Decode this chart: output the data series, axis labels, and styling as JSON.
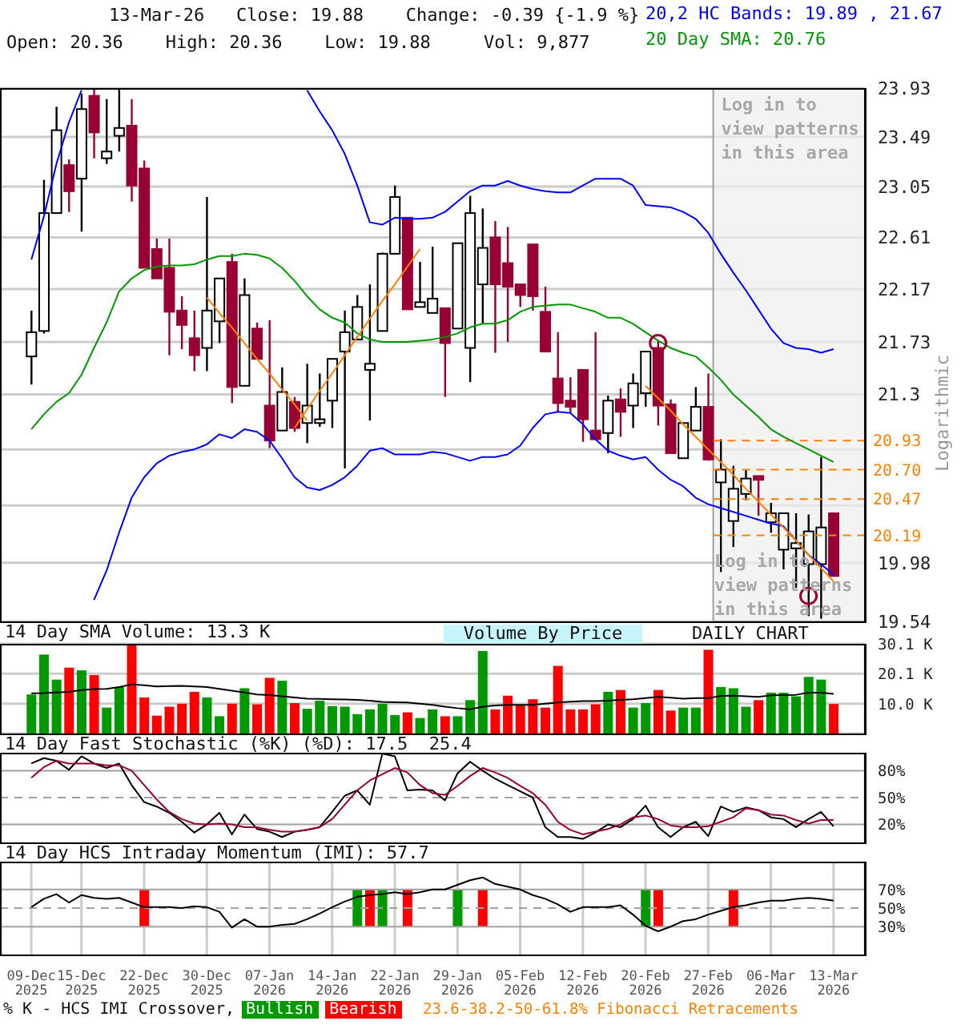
{
  "chart_data": [
    {
      "type": "candlestick",
      "categories": [
        "09-Dec 2025",
        null,
        null,
        null,
        "15-Dec 2025",
        null,
        null,
        null,
        null,
        "22-Dec 2025",
        null,
        null,
        null,
        null,
        "30-Dec 2025",
        null,
        null,
        null,
        null,
        "07-Jan 2026",
        null,
        null,
        null,
        null,
        "14-Jan 2026",
        null,
        null,
        null,
        null,
        "22-Jan 2026",
        null,
        null,
        null,
        null,
        "29-Jan 2026",
        null,
        null,
        null,
        null,
        "05-Feb 2026",
        null,
        null,
        null,
        null,
        "12-Feb 2026",
        null,
        null,
        null,
        null,
        "20-Feb 2026",
        null,
        null,
        null,
        null,
        "27-Feb 2026",
        null,
        null,
        null,
        null,
        "06-Mar 2026",
        null,
        null,
        null,
        null,
        "13-Mar 2026"
      ],
      "ohlc": [
        [
          21.61,
          21.99,
          21.38,
          21.81
        ],
        [
          21.82,
          23.11,
          21.8,
          22.82
        ],
        [
          22.82,
          23.76,
          22.82,
          23.55
        ],
        [
          23.24,
          23.29,
          22.83,
          23.01
        ],
        [
          23.12,
          23.88,
          22.66,
          23.74
        ],
        [
          23.86,
          23.92,
          23.3,
          23.53
        ],
        [
          23.3,
          23.83,
          23.25,
          23.36
        ],
        [
          23.5,
          23.93,
          23.36,
          23.57
        ],
        [
          23.59,
          23.83,
          22.92,
          23.06
        ],
        [
          23.21,
          23.28,
          22.35,
          22.35
        ],
        [
          22.51,
          22.6,
          22.26,
          22.26
        ],
        [
          22.35,
          22.6,
          21.62,
          21.98
        ],
        [
          21.99,
          22.11,
          21.67,
          21.87
        ],
        [
          21.76,
          21.99,
          21.49,
          21.62
        ],
        [
          21.68,
          22.96,
          21.49,
          21.99
        ],
        [
          21.9,
          22.26,
          21.72,
          22.26
        ],
        [
          22.4,
          22.47,
          21.23,
          21.36
        ],
        [
          21.37,
          22.26,
          21.37,
          22.12
        ],
        [
          21.84,
          21.89,
          21.59,
          21.59
        ],
        [
          21.21,
          21.91,
          20.87,
          20.93
        ],
        [
          21.01,
          21.52,
          21.01,
          21.32
        ],
        [
          21.24,
          21.28,
          21.0,
          21.03
        ],
        [
          21.07,
          21.55,
          20.91,
          21.21
        ],
        [
          21.07,
          21.47,
          21.04,
          21.1
        ],
        [
          21.25,
          21.59,
          21.03,
          21.59
        ],
        [
          21.65,
          21.99,
          20.71,
          21.81
        ],
        [
          21.75,
          22.12,
          21.75,
          22.02
        ],
        [
          21.5,
          22.21,
          21.09,
          21.55
        ],
        [
          21.82,
          22.48,
          21.82,
          22.47
        ],
        [
          22.47,
          23.06,
          22.47,
          22.96
        ],
        [
          22.78,
          22.78,
          22.0,
          22.0
        ],
        [
          22.02,
          22.4,
          22.02,
          22.06
        ],
        [
          21.97,
          22.53,
          21.97,
          22.09
        ],
        [
          22.01,
          22.01,
          21.28,
          21.72
        ],
        [
          21.84,
          22.56,
          21.84,
          22.56
        ],
        [
          21.68,
          22.97,
          21.4,
          22.82
        ],
        [
          22.21,
          22.86,
          21.88,
          22.52
        ],
        [
          22.61,
          22.75,
          21.64,
          22.21
        ],
        [
          22.39,
          22.7,
          21.73,
          22.19
        ],
        [
          22.21,
          22.21,
          22.02,
          22.12
        ],
        [
          22.55,
          22.55,
          21.99,
          22.11
        ],
        [
          21.98,
          22.19,
          21.65,
          21.65
        ],
        [
          21.43,
          21.81,
          21.16,
          21.23
        ],
        [
          21.25,
          21.44,
          21.15,
          21.2
        ],
        [
          21.5,
          21.5,
          20.92,
          21.1
        ],
        [
          21.01,
          21.81,
          20.94,
          20.94
        ],
        [
          20.99,
          21.29,
          20.83,
          21.25
        ],
        [
          21.26,
          21.35,
          20.96,
          21.16
        ],
        [
          21.21,
          21.47,
          21.03,
          21.39
        ],
        [
          21.31,
          21.65,
          21.2,
          21.65
        ],
        [
          21.68,
          21.74,
          21.05,
          21.21
        ],
        [
          21.22,
          21.26,
          20.83,
          20.83
        ],
        [
          20.79,
          21.07,
          20.79,
          21.07
        ],
        [
          21.01,
          21.36,
          21.01,
          21.2
        ],
        [
          21.2,
          21.47,
          20.77,
          20.78
        ],
        [
          20.6,
          20.94,
          19.91,
          20.7
        ],
        [
          20.3,
          20.73,
          20.1,
          20.55
        ],
        [
          20.51,
          20.7,
          20.46,
          20.63
        ],
        [
          20.65,
          20.65,
          20.34,
          20.62
        ],
        [
          20.29,
          20.44,
          20.21,
          20.36
        ],
        [
          20.08,
          20.36,
          19.93,
          20.36
        ],
        [
          20.09,
          20.36,
          19.79,
          20.13
        ],
        [
          19.97,
          20.35,
          19.58,
          20.22
        ],
        [
          19.97,
          20.8,
          19.56,
          20.25
        ],
        [
          20.36,
          20.36,
          19.88,
          19.88
        ]
      ],
      "colors": [
        "#000000",
        "#000000",
        "#000000",
        "#990033",
        "#000000",
        "#990033",
        "#000000",
        "#000000",
        "#990033",
        "#990033",
        "#990033",
        "#990033",
        "#990033",
        "#990033",
        "#000000",
        "#000000",
        "#990033",
        "#000000",
        "#990033",
        "#990033",
        "#000000",
        "#990033",
        "#000000",
        "#000000",
        "#000000",
        "#000000",
        "#000000",
        "#000000",
        "#000000",
        "#000000",
        "#990033",
        "#000000",
        "#000000",
        "#990033",
        "#000000",
        "#000000",
        "#000000",
        "#990033",
        "#990033",
        "#990033",
        "#990033",
        "#990033",
        "#990033",
        "#990033",
        "#990033",
        "#990033",
        "#000000",
        "#990033",
        "#000000",
        "#000000",
        "#990033",
        "#990033",
        "#000000",
        "#000000",
        "#990033",
        "#000000",
        "#000000",
        "#000000",
        "#990033",
        "#000000",
        "#000000",
        "#000000",
        "#000000",
        "#000000",
        "#990033"
      ],
      "series": [
        {
          "type": "line",
          "name": "20,2 HC Bands: 19.89 , 21.67",
          "color": "#0000ff",
          "values": [
            22.42,
            22.79,
            23.25,
            23.62,
            23.91,
            null,
            null,
            null,
            null,
            null,
            null,
            null,
            null,
            null,
            null,
            null,
            null,
            null,
            null,
            null,
            null,
            null,
            23.91,
            23.72,
            23.55,
            23.34,
            23.06,
            22.74,
            22.72,
            22.78,
            22.77,
            22.77,
            22.78,
            22.83,
            22.92,
            23.01,
            23.06,
            23.06,
            23.1,
            23.06,
            23.03,
            23.01,
            23.0,
            23.0,
            23.06,
            23.12,
            23.12,
            23.12,
            23.06,
            22.89,
            22.88,
            22.87,
            22.83,
            22.77,
            22.65,
            22.47,
            22.31,
            22.16,
            22.0,
            21.84,
            21.72,
            21.68,
            21.67,
            21.64,
            21.67
          ]
        },
        {
          "type": "line",
          "color": "#0000ff",
          "values": [
            null,
            null,
            null,
            null,
            null,
            19.7,
            19.92,
            20.21,
            20.48,
            20.64,
            20.75,
            20.81,
            20.84,
            20.86,
            20.9,
            20.98,
            20.95,
            21.02,
            21.0,
            20.93,
            20.79,
            20.64,
            20.56,
            20.54,
            20.58,
            20.64,
            20.73,
            20.85,
            20.87,
            20.82,
            20.82,
            20.82,
            20.84,
            20.83,
            20.8,
            20.77,
            20.8,
            20.8,
            20.82,
            20.89,
            21.03,
            21.14,
            21.16,
            21.15,
            21.06,
            20.94,
            20.85,
            20.81,
            20.78,
            20.8,
            20.7,
            20.62,
            20.57,
            20.48,
            20.43,
            20.4,
            20.37,
            20.34,
            20.31,
            20.28,
            20.26,
            20.15,
            20.04,
            19.97,
            19.89
          ]
        },
        {
          "type": "line",
          "name": "20 Day SMA: 20.76",
          "color": "#009900",
          "values": [
            21.02,
            21.14,
            21.24,
            21.31,
            21.46,
            21.68,
            21.89,
            22.15,
            22.26,
            22.33,
            22.36,
            22.37,
            22.37,
            22.38,
            22.42,
            22.45,
            22.45,
            22.47,
            22.46,
            22.43,
            22.35,
            22.24,
            22.11,
            22.0,
            21.93,
            21.89,
            21.8,
            21.75,
            21.73,
            21.73,
            21.73,
            21.74,
            21.75,
            21.77,
            21.8,
            21.85,
            21.88,
            21.88,
            21.91,
            21.98,
            22.02,
            22.03,
            22.04,
            22.04,
            22.01,
            21.98,
            21.93,
            21.93,
            21.88,
            21.81,
            21.74,
            21.68,
            21.64,
            21.61,
            21.52,
            21.42,
            21.3,
            21.21,
            21.12,
            21.02,
            20.96,
            20.91,
            20.86,
            20.81,
            20.76
          ]
        },
        {
          "type": "line",
          "color": "#ff8000",
          "values": [
            null,
            null,
            null,
            null,
            null,
            null,
            null,
            null,
            null,
            null,
            null,
            null,
            null,
            null,
            22.1,
            21.97,
            21.85,
            21.72,
            21.59,
            21.47,
            21.34,
            21.22,
            21.09,
            null,
            null,
            null,
            null,
            null,
            null,
            null,
            null,
            null,
            null,
            null,
            null,
            null,
            null,
            null,
            null,
            null,
            null,
            null,
            null,
            null,
            null,
            null,
            null,
            null,
            null,
            null,
            null,
            null,
            null,
            null,
            null,
            null,
            null,
            null,
            null,
            null,
            null,
            null,
            null,
            null,
            null
          ]
        },
        {
          "type": "line",
          "color": "#ff8000",
          "values": [
            null,
            null,
            null,
            null,
            null,
            null,
            null,
            null,
            null,
            null,
            null,
            null,
            null,
            null,
            null,
            null,
            null,
            null,
            null,
            null,
            null,
            21.03,
            21.18,
            21.33,
            21.47,
            21.62,
            21.77,
            21.92,
            22.07,
            22.21,
            22.36,
            22.51,
            null,
            null,
            null,
            null,
            null,
            null,
            null,
            null,
            null,
            null,
            null,
            null,
            null,
            null,
            null,
            null,
            null,
            null,
            null,
            null,
            null,
            null,
            null,
            null,
            null,
            null,
            null,
            null,
            null,
            null,
            null,
            null,
            null
          ]
        },
        {
          "type": "line",
          "color": "#ff8000",
          "values": [
            null,
            null,
            null,
            null,
            null,
            null,
            null,
            null,
            null,
            null,
            null,
            null,
            null,
            null,
            null,
            null,
            null,
            null,
            null,
            null,
            null,
            null,
            null,
            null,
            null,
            null,
            null,
            null,
            null,
            null,
            null,
            null,
            null,
            null,
            null,
            null,
            null,
            null,
            null,
            null,
            null,
            null,
            null,
            null,
            null,
            null,
            null,
            null,
            null,
            21.37,
            21.27,
            21.17,
            21.06,
            20.96,
            20.86,
            20.76,
            20.66,
            20.55,
            20.45,
            20.35,
            20.25,
            20.15,
            20.04,
            19.94,
            19.84
          ]
        },
        {
          "type": "scatter",
          "marker": "circle",
          "color": "#990033",
          "values": [
            null,
            null,
            null,
            null,
            null,
            null,
            null,
            null,
            null,
            null,
            null,
            null,
            null,
            null,
            null,
            null,
            null,
            null,
            null,
            null,
            null,
            null,
            null,
            null,
            null,
            null,
            null,
            null,
            null,
            null,
            null,
            null,
            null,
            null,
            null,
            null,
            null,
            null,
            null,
            null,
            null,
            null,
            null,
            null,
            null,
            null,
            null,
            null,
            null,
            null,
            21.72,
            null,
            null,
            null,
            null,
            null,
            null,
            null,
            null,
            null,
            null,
            null,
            19.73,
            null,
            null
          ]
        }
      ],
      "ylim": [
        19.54,
        23.93
      ],
      "yticks": [
        19.54,
        19.98,
        {
          "value": 20.42,
          "label": null
        },
        {
          "value": 20.86,
          "label": null
        },
        21.3,
        21.73,
        22.17,
        22.61,
        23.05,
        23.49,
        23.93
      ],
      "log": true,
      "ylabel": "Logarithmic",
      "grid": true,
      "legend": "top right",
      "tick_labels": "y",
      "ref_lines": [
        {
          "axis": "y",
          "value": 20.93,
          "label": "20.93",
          "color": "#ff8000",
          "line_style": "dashed"
        },
        {
          "axis": "y",
          "value": 20.7,
          "label": "20.70",
          "color": "#ff8000",
          "line_style": "dashed"
        },
        {
          "axis": "y",
          "value": 20.47,
          "label": "20.47",
          "color": "#ff8000",
          "line_style": "dashed"
        },
        {
          "axis": "y",
          "value": 20.19,
          "label": "20.19",
          "color": "#ff8000",
          "line_style": "dashed"
        }
      ],
      "bands": [
        {
          "axis": "x",
          "from": "27-Feb 2026",
          "to": "13-Mar 2026",
          "label": "Log in to view patterns in this area",
          "color": "#eeeeee"
        }
      ],
      "annotations": [
        "13-Mar-26   Close: 19.88    Change: -0.39 {-1.9 %}",
        "Open: 20.36    High: 20.36    Low: 19.88     Vol: 9,877",
        "Log in to view patterns in this area"
      ]
    },
    {
      "type": "bar",
      "title": "14 Day SMA Volume: 13.3 K",
      "categories": [
        "09-Dec 2025",
        null,
        null,
        null,
        "15-Dec 2025",
        null,
        null,
        null,
        null,
        "22-Dec 2025",
        null,
        null,
        null,
        null,
        "30-Dec 2025",
        null,
        null,
        null,
        null,
        "07-Jan 2026",
        null,
        null,
        null,
        null,
        "14-Jan 2026",
        null,
        null,
        null,
        null,
        "22-Jan 2026",
        null,
        null,
        null,
        null,
        "29-Jan 2026",
        null,
        null,
        null,
        null,
        "05-Feb 2026",
        null,
        null,
        null,
        null,
        "12-Feb 2026",
        null,
        null,
        null,
        null,
        "20-Feb 2026",
        null,
        null,
        null,
        null,
        "27-Feb 2026",
        null,
        null,
        null,
        null,
        "06-Mar 2026",
        null,
        null,
        null,
        null,
        "13-Mar 2026"
      ],
      "series": [
        {
          "type": "bar",
          "values": [
            13.1,
            26.5,
            18.1,
            22.1,
            21.2,
            19.6,
            8.7,
            15.6,
            29.8,
            12.1,
            6.0,
            9.0,
            10.0,
            14.0,
            12.1,
            5.8,
            10.0,
            15.2,
            9.8,
            18.7,
            17.7,
            10.2,
            8.3,
            11.0,
            9.2,
            9.0,
            6.5,
            8.1,
            10.0,
            6.2,
            7.1,
            5.2,
            8.1,
            5.8,
            5.8,
            11.2,
            27.7,
            8.1,
            12.7,
            9.4,
            11.5,
            8.7,
            22.7,
            8.1,
            8.1,
            9.8,
            14.0,
            14.6,
            8.7,
            10.2,
            14.6,
            7.7,
            8.7,
            8.7,
            28.1,
            15.6,
            15.2,
            9.0,
            11.2,
            13.7,
            13.7,
            12.5,
            19.0,
            18.1,
            9.9
          ],
          "colors": [
            "#009900",
            "#009900",
            "#009900",
            "#ff0000",
            "#009900",
            "#ff0000",
            "#009900",
            "#009900",
            "#ff0000",
            "#ff0000",
            "#ff0000",
            "#ff0000",
            "#ff0000",
            "#ff0000",
            "#009900",
            "#009900",
            "#ff0000",
            "#009900",
            "#ff0000",
            "#ff0000",
            "#009900",
            "#ff0000",
            "#009900",
            "#009900",
            "#009900",
            "#009900",
            "#009900",
            "#009900",
            "#009900",
            "#009900",
            "#ff0000",
            "#009900",
            "#009900",
            "#ff0000",
            "#009900",
            "#009900",
            "#009900",
            "#ff0000",
            "#ff0000",
            "#ff0000",
            "#ff0000",
            "#ff0000",
            "#ff0000",
            "#ff0000",
            "#ff0000",
            "#ff0000",
            "#009900",
            "#ff0000",
            "#009900",
            "#009900",
            "#ff0000",
            "#ff0000",
            "#009900",
            "#009900",
            "#ff0000",
            "#009900",
            "#009900",
            "#009900",
            "#ff0000",
            "#009900",
            "#009900",
            "#009900",
            "#009900",
            "#009900",
            "#ff0000"
          ]
        },
        {
          "type": "line",
          "color": "#000000",
          "values": [
            13.5,
            13.6,
            13.8,
            14.0,
            14.6,
            14.9,
            15.0,
            15.6,
            16.5,
            16.2,
            15.8,
            15.9,
            16.0,
            15.8,
            15.6,
            15.0,
            14.4,
            13.8,
            13.1,
            12.9,
            12.5,
            12.1,
            11.7,
            11.6,
            11.5,
            11.4,
            11.3,
            11.0,
            10.6,
            10.5,
            10.4,
            10.0,
            9.6,
            9.0,
            8.5,
            8.1,
            9.0,
            9.4,
            9.6,
            9.6,
            9.6,
            10.0,
            10.4,
            10.7,
            10.9,
            10.9,
            11.0,
            11.3,
            11.5,
            11.9,
            12.3,
            12.0,
            11.7,
            11.9,
            11.9,
            12.6,
            12.7,
            12.5,
            12.3,
            12.8,
            12.9,
            13.0,
            13.7,
            13.7,
            13.3
          ]
        }
      ],
      "ylim": [
        0,
        30.1
      ],
      "yticks": [
        {
          "value": 10.0,
          "label": "10.0 K"
        },
        {
          "value": 20.1,
          "label": "20.1 K"
        },
        {
          "value": 30.1,
          "label": "30.1 K"
        }
      ],
      "grid": true,
      "tick_labels": "y",
      "annotations": [
        "Volume By Price",
        "DAILY CHART"
      ]
    },
    {
      "type": "line",
      "title": "14 Day Fast Stochastic (%K) (%D): 17.5  25.4",
      "categories": [
        "09-Dec 2025",
        null,
        null,
        null,
        "15-Dec 2025",
        null,
        null,
        null,
        null,
        "22-Dec 2025",
        null,
        null,
        null,
        null,
        "30-Dec 2025",
        null,
        null,
        null,
        null,
        "07-Jan 2026",
        null,
        null,
        null,
        null,
        "14-Jan 2026",
        null,
        null,
        null,
        null,
        "22-Jan 2026",
        null,
        null,
        null,
        null,
        "29-Jan 2026",
        null,
        null,
        null,
        null,
        "05-Feb 2026",
        null,
        null,
        null,
        null,
        "12-Feb 2026",
        null,
        null,
        null,
        null,
        "20-Feb 2026",
        null,
        null,
        null,
        null,
        "27-Feb 2026",
        null,
        null,
        null,
        null,
        "06-Mar 2026",
        null,
        null,
        null,
        null,
        "13-Mar 2026"
      ],
      "series": [
        {
          "color": "#000000",
          "values": [
            88,
            94,
            91,
            81,
            96,
            88,
            83,
            88,
            64,
            45,
            40,
            33,
            23,
            11,
            20,
            33,
            9,
            31,
            15,
            12,
            6,
            12,
            14,
            17,
            34,
            52,
            58,
            42,
            99,
            96,
            58,
            59,
            58,
            47,
            77,
            90,
            80,
            71,
            64,
            57,
            50,
            17,
            6,
            6,
            4,
            11,
            20,
            17,
            26,
            41,
            17,
            6,
            17,
            23,
            7,
            40,
            34,
            39,
            36,
            28,
            26,
            17,
            26,
            34,
            18
          ]
        },
        {
          "color": "#990033",
          "values": [
            72,
            84,
            91,
            88,
            88,
            88,
            86,
            86,
            80,
            64,
            48,
            34,
            26,
            21,
            20,
            21,
            20,
            17,
            17,
            14,
            12,
            12,
            14,
            17,
            26,
            42,
            58,
            69,
            76,
            83,
            78,
            64,
            55,
            53,
            63,
            74,
            83,
            78,
            72,
            63,
            55,
            42,
            23,
            14,
            9,
            12,
            15,
            20,
            28,
            30,
            26,
            19,
            17,
            17,
            18,
            23,
            28,
            38,
            36,
            31,
            30,
            25,
            21,
            25,
            25
          ]
        }
      ],
      "ylim": [
        0,
        100
      ],
      "yticks": [
        {
          "value": 20,
          "label": "20%"
        },
        {
          "value": 50,
          "label": "50%"
        },
        {
          "value": 80,
          "label": "80%"
        }
      ],
      "grid": "x",
      "tick_labels": "y",
      "ref_lines": [
        {
          "axis": "y",
          "value": 80,
          "color": "#a0a0a0",
          "line_style": "solid"
        },
        {
          "axis": "y",
          "value": 50,
          "color": "#a0a0a0",
          "line_style": "dashed"
        },
        {
          "axis": "y",
          "value": 20,
          "color": "#a0a0a0",
          "line_style": "solid"
        }
      ]
    },
    {
      "type": "line",
      "title": "14 Day HCS Intraday Momentum (IMI): 57.7",
      "categories": [
        "09-Dec 2025",
        null,
        null,
        null,
        "15-Dec 2025",
        null,
        null,
        null,
        null,
        "22-Dec 2025",
        null,
        null,
        null,
        null,
        "30-Dec 2025",
        null,
        null,
        null,
        null,
        "07-Jan 2026",
        null,
        null,
        null,
        null,
        "14-Jan 2026",
        null,
        null,
        null,
        null,
        "22-Jan 2026",
        null,
        null,
        null,
        null,
        "29-Jan 2026",
        null,
        null,
        null,
        null,
        "05-Feb 2026",
        null,
        null,
        null,
        null,
        "12-Feb 2026",
        null,
        null,
        null,
        null,
        "20-Feb 2026",
        null,
        null,
        null,
        null,
        "27-Feb 2026",
        null,
        null,
        null,
        null,
        "06-Mar 2026",
        null,
        null,
        null,
        null,
        "13-Mar 2026"
      ],
      "series": [
        {
          "type": "bar",
          "name": "Bullish",
          "color": "#009900",
          "values": [
            null,
            null,
            null,
            null,
            null,
            null,
            null,
            null,
            null,
            null,
            null,
            null,
            null,
            null,
            null,
            null,
            null,
            null,
            null,
            null,
            null,
            null,
            null,
            null,
            null,
            null,
            40,
            null,
            40,
            null,
            null,
            null,
            null,
            null,
            40,
            null,
            null,
            null,
            null,
            null,
            null,
            null,
            null,
            null,
            null,
            null,
            null,
            null,
            null,
            40,
            null,
            null,
            null,
            null,
            null,
            null,
            null,
            null,
            null,
            null,
            null,
            null,
            null,
            null,
            null
          ],
          "base": [
            null,
            null,
            null,
            null,
            null,
            null,
            null,
            null,
            null,
            null,
            null,
            null,
            null,
            null,
            null,
            null,
            null,
            null,
            null,
            null,
            null,
            null,
            null,
            null,
            null,
            null,
            30,
            null,
            30,
            null,
            null,
            null,
            null,
            null,
            30,
            null,
            null,
            null,
            null,
            null,
            null,
            null,
            null,
            null,
            null,
            null,
            null,
            null,
            null,
            30,
            null,
            null,
            null,
            null,
            null,
            null,
            null,
            null,
            null,
            null,
            null,
            null,
            null,
            null,
            null
          ]
        },
        {
          "type": "bar",
          "name": "Bearish",
          "color": "#ff0000",
          "values": [
            null,
            null,
            null,
            null,
            null,
            null,
            null,
            null,
            null,
            40,
            null,
            null,
            null,
            null,
            null,
            null,
            null,
            null,
            null,
            null,
            null,
            null,
            null,
            null,
            null,
            null,
            null,
            40,
            null,
            null,
            40,
            null,
            null,
            null,
            null,
            null,
            40,
            null,
            null,
            null,
            null,
            null,
            null,
            null,
            null,
            null,
            null,
            null,
            null,
            null,
            40,
            null,
            null,
            null,
            null,
            null,
            40,
            null,
            null,
            null,
            null,
            null,
            null,
            null,
            null
          ],
          "base": [
            null,
            null,
            null,
            null,
            null,
            null,
            null,
            null,
            null,
            30,
            null,
            null,
            null,
            null,
            null,
            null,
            null,
            null,
            null,
            null,
            null,
            null,
            null,
            null,
            null,
            null,
            null,
            30,
            null,
            null,
            30,
            null,
            null,
            null,
            null,
            null,
            30,
            null,
            null,
            null,
            null,
            null,
            null,
            null,
            null,
            null,
            null,
            null,
            null,
            null,
            30,
            null,
            null,
            null,
            null,
            null,
            30,
            null,
            null,
            null,
            null,
            null,
            null,
            null,
            null
          ]
        },
        {
          "type": "line",
          "color": "#000000",
          "values": [
            51,
            60,
            65,
            56,
            64,
            61,
            60,
            61,
            56,
            51,
            51,
            51,
            50,
            52,
            51,
            46,
            29,
            38,
            30,
            30,
            32,
            33,
            38,
            44,
            51,
            57,
            62,
            64,
            65,
            67,
            65,
            67,
            70,
            70,
            75,
            80,
            83,
            76,
            73,
            70,
            64,
            60,
            54,
            46,
            51,
            51,
            51,
            53,
            43,
            31,
            25,
            30,
            36,
            38,
            43,
            47,
            51,
            53,
            56,
            58,
            58,
            60,
            61,
            60,
            58
          ]
        }
      ],
      "ylim": [
        0,
        100
      ],
      "yticks": [
        {
          "value": 30,
          "label": "30%"
        },
        {
          "value": 50,
          "label": "50%"
        },
        {
          "value": 70,
          "label": "70%"
        }
      ],
      "grid": "x",
      "legend": "bottom",
      "legend_title": "% K - HCS IMI Crossover,",
      "ref_lines": [
        {
          "axis": "y",
          "value": 70,
          "color": "#a0a0a0",
          "line_style": "solid"
        },
        {
          "axis": "y",
          "value": 50,
          "color": "#a0a0a0",
          "line_style": "dashed"
        },
        {
          "axis": "y",
          "value": 30,
          "color": "#a0a0a0",
          "line_style": "solid"
        }
      ],
      "annotations": [
        "23.6-38.2-50-61.8% Fibonacci Retracements"
      ]
    }
  ]
}
